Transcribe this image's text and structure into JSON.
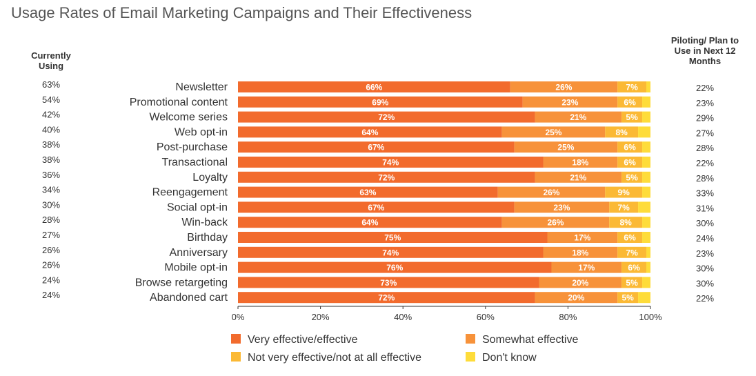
{
  "chart_data": {
    "type": "bar",
    "orientation": "horizontal",
    "stacked": true,
    "title": "Usage Rates of Email Marketing Campaigns and Their Effectiveness",
    "left_column_header": "Currently Using",
    "right_column_header": "Piloting/ Plan to Use in Next 12 Months",
    "categories": [
      "Newsletter",
      "Promotional content",
      "Welcome series",
      "Web opt-in",
      "Post-purchase",
      "Transactional",
      "Loyalty",
      "Reengagement",
      "Social opt-in",
      "Win-back",
      "Birthday",
      "Anniversary",
      "Mobile opt-in",
      "Browse retargeting",
      "Abandoned cart"
    ],
    "currently_using": [
      "63%",
      "54%",
      "42%",
      "40%",
      "38%",
      "38%",
      "36%",
      "34%",
      "30%",
      "28%",
      "27%",
      "26%",
      "26%",
      "24%",
      "24%"
    ],
    "piloting_plan": [
      "22%",
      "23%",
      "29%",
      "27%",
      "28%",
      "22%",
      "28%",
      "33%",
      "31%",
      "30%",
      "24%",
      "23%",
      "30%",
      "30%",
      "22%"
    ],
    "series": [
      {
        "name": "Very effective/effective",
        "color": "#f26b2d",
        "values": [
          66,
          69,
          72,
          64,
          67,
          74,
          72,
          63,
          67,
          64,
          75,
          74,
          76,
          73,
          72
        ]
      },
      {
        "name": "Somewhat effective",
        "color": "#f7923a",
        "values": [
          26,
          23,
          21,
          25,
          25,
          18,
          21,
          26,
          23,
          26,
          17,
          18,
          17,
          20,
          20
        ]
      },
      {
        "name": "Not very effective/not at all effective",
        "color": "#fbb935",
        "values": [
          7,
          6,
          5,
          8,
          6,
          6,
          5,
          9,
          7,
          8,
          6,
          7,
          6,
          5,
          5
        ]
      },
      {
        "name": "Don't know",
        "color": "#fedc3a",
        "values": [
          1,
          2,
          2,
          3,
          2,
          2,
          2,
          2,
          3,
          2,
          2,
          1,
          1,
          2,
          3
        ]
      }
    ],
    "labeled_series": 3,
    "xlim": [
      0,
      100
    ],
    "xticks": [
      "0%",
      "20%",
      "40%",
      "60%",
      "80%",
      "100%"
    ],
    "grid": false,
    "legend_position": "bottom"
  }
}
